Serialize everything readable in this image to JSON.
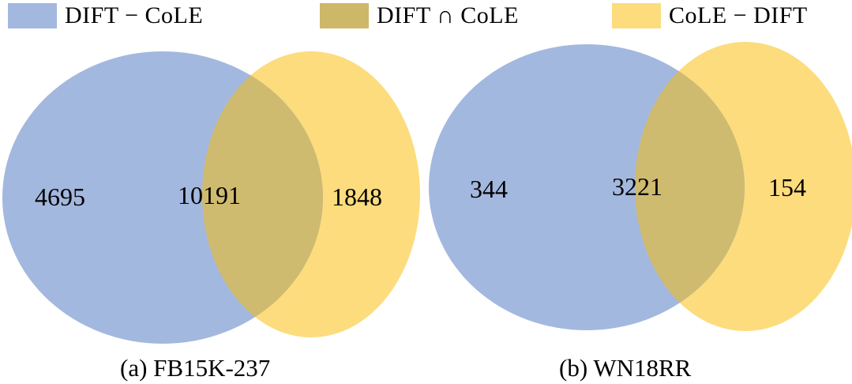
{
  "colors": {
    "dift_only": "#a3b8df",
    "intersection": "#cfbb6f",
    "cole_only": "#fcdc7d",
    "legend_intersection": "#cdb86a"
  },
  "legend": [
    {
      "label": "DIFT − CoLE",
      "color_key": "dift_only"
    },
    {
      "label": "DIFT ∩ CoLE",
      "color_key": "legend_intersection"
    },
    {
      "label": "CoLE − DIFT",
      "color_key": "cole_only"
    }
  ],
  "diagrams": [
    {
      "caption": "(a) FB15K-237",
      "dift_only": "4695",
      "intersection": "10191",
      "cole_only": "1848"
    },
    {
      "caption": "(b) WN18RR",
      "dift_only": "344",
      "intersection": "3221",
      "cole_only": "154"
    }
  ]
}
